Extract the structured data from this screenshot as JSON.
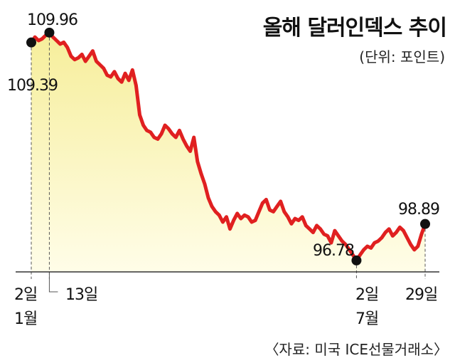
{
  "header": {
    "title": "올해 달러인덱스 추이",
    "unit": "(단위: 포인트)"
  },
  "footer": {
    "source": "〈자료: 미국 ICE선물거래소〉"
  },
  "colors": {
    "line": "#e02020",
    "fill_top": "#f6ee9a",
    "fill_bottom": "#fffde8",
    "axis": "#333333"
  },
  "chart_data": {
    "type": "area",
    "title": "올해 달러인덱스 추이",
    "unit": "(단위: 포인트)",
    "ylim": [
      96.2,
      110.2
    ],
    "grid": false,
    "x_tick_labels": [
      {
        "text": "2일",
        "sub": "1월",
        "date": "1월 2일"
      },
      {
        "text": "13일",
        "date": "1월 13일"
      },
      {
        "text": "2일",
        "sub": "7월",
        "date": "7월 2일"
      },
      {
        "text": "29일",
        "date": "7월 29일"
      }
    ],
    "annotations": [
      {
        "label": "109.39",
        "date": "1월 2일",
        "value": 109.39
      },
      {
        "label": "109.96",
        "date": "1월 13일",
        "value": 109.96
      },
      {
        "label": "96.78",
        "date": "7월 2일",
        "value": 96.78
      },
      {
        "label": "98.89",
        "date": "7월 29일",
        "value": 98.89
      }
    ],
    "series": [
      {
        "values": [
          109.39,
          109.7,
          109.5,
          109.6,
          109.8,
          109.96,
          109.7,
          109.5,
          109.3,
          109.4,
          109.1,
          108.6,
          108.4,
          108.5,
          108.7,
          108.3,
          108.6,
          108.9,
          108.3,
          108.1,
          107.9,
          107.5,
          107.4,
          107.7,
          107.3,
          107.1,
          107.6,
          107.2,
          107.8,
          106.9,
          105.2,
          104.6,
          104.3,
          104.2,
          103.9,
          103.8,
          104.1,
          104.6,
          104.4,
          104.1,
          103.9,
          104.3,
          103.8,
          103.4,
          103.1,
          103.9,
          102.5,
          101.8,
          101.2,
          100.4,
          99.9,
          99.6,
          99.4,
          99.0,
          99.3,
          98.6,
          99.1,
          99.5,
          99.2,
          99.4,
          99.3,
          99.0,
          99.1,
          99.6,
          100.1,
          100.3,
          99.7,
          99.6,
          99.9,
          100.2,
          99.6,
          99.3,
          98.9,
          99.2,
          99.1,
          99.3,
          98.8,
          98.6,
          98.4,
          98.8,
          98.6,
          98.3,
          98.2,
          97.8,
          98.5,
          98.2,
          97.9,
          97.7,
          97.4,
          97.1,
          96.78,
          97.1,
          97.4,
          97.6,
          97.5,
          97.8,
          97.9,
          98.1,
          98.4,
          98.6,
          98.2,
          98.4,
          98.7,
          98.5,
          98.1,
          97.7,
          97.4,
          97.6,
          98.3,
          98.89
        ]
      }
    ]
  }
}
